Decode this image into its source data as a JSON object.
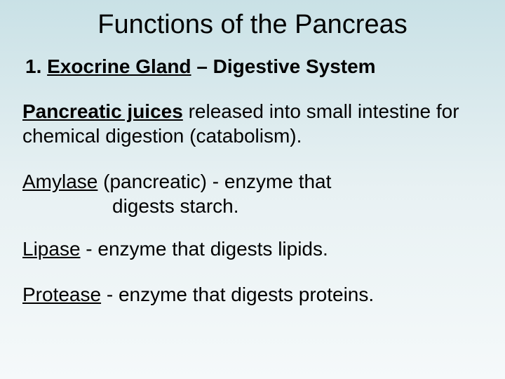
{
  "slide": {
    "background_gradient_top": "#c9e1e6",
    "background_gradient_mid": "#e8f1f3",
    "background_gradient_bottom": "#f5f9fa",
    "title": {
      "text": "Functions of the Pancreas",
      "fontsize": 38,
      "color": "#000000",
      "weight": "normal",
      "align": "center"
    },
    "heading": {
      "number": "1. ",
      "underlined_text": "Exocrine Gland",
      "rest": " – Digestive System",
      "fontsize": 28,
      "weight": "bold",
      "color": "#000000"
    },
    "pancreatic_juices": {
      "bold_underlined": "Pancreatic juices",
      "rest": " released into small intestine for chemical digestion (catabolism).",
      "fontsize": 28,
      "color": "#000000"
    },
    "amylase": {
      "underlined": "Amylase",
      "line1_rest": " (pancreatic) - enzyme that",
      "line2": "digests starch.",
      "fontsize": 28,
      "color": "#000000"
    },
    "lipase": {
      "underlined": "Lipase",
      "rest": " - enzyme that digests lipids.",
      "fontsize": 28,
      "color": "#000000"
    },
    "protease": {
      "underlined": "Protease",
      "rest": " - enzyme that digests proteins.",
      "fontsize": 28,
      "color": "#000000"
    }
  }
}
